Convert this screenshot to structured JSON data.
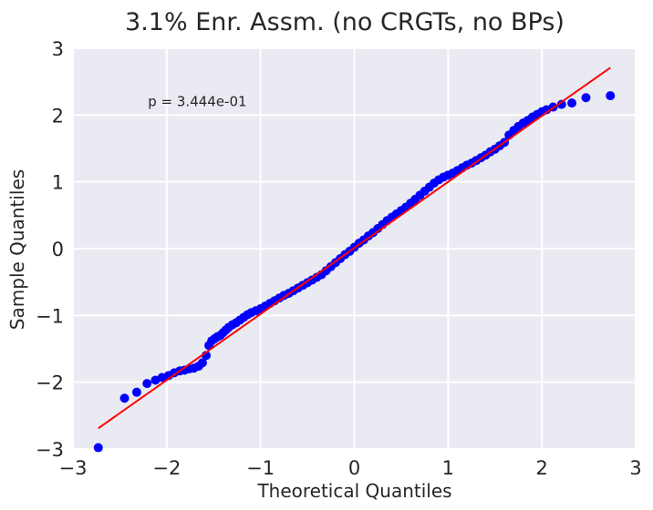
{
  "chart_data": {
    "type": "scatter",
    "title": "3.1% Enr. Assm. (no CRGTs, no BPs)",
    "xlabel": "Theoretical Quantiles",
    "ylabel": "Sample Quantiles",
    "xlim": [
      -3,
      3
    ],
    "ylim": [
      -3,
      3
    ],
    "xticks": [
      -3,
      -2,
      -1,
      0,
      1,
      2,
      3
    ],
    "yticks": [
      -3,
      -2,
      -1,
      0,
      1,
      2,
      3
    ],
    "xtick_labels": [
      "−3",
      "−2",
      "−1",
      "0",
      "1",
      "2",
      "3"
    ],
    "ytick_labels": [
      "−3",
      "−2",
      "−1",
      "0",
      "1",
      "2",
      "3"
    ],
    "grid": true,
    "annotation": {
      "text": "p = 3.444e-01",
      "x": -2.2,
      "y": 2.2
    },
    "series": [
      {
        "kind": "points",
        "color": "#0000ff",
        "x": [
          -2.73,
          -2.45,
          -2.32,
          -2.21,
          -2.12,
          -2.05,
          -1.98,
          -1.92,
          -1.86,
          -1.81,
          -1.76,
          -1.71,
          -1.66,
          -1.62,
          -1.58,
          -1.55,
          -1.52,
          -1.49,
          -1.46,
          -1.43,
          -1.4,
          -1.37,
          -1.34,
          -1.3,
          -1.26,
          -1.22,
          -1.18,
          -1.14,
          -1.1,
          -1.05,
          -1.0,
          -0.95,
          -0.9,
          -0.85,
          -0.8,
          -0.75,
          -0.7,
          -0.65,
          -0.6,
          -0.55,
          -0.5,
          -0.45,
          -0.4,
          -0.35,
          -0.3,
          -0.25,
          -0.2,
          -0.15,
          -0.1,
          -0.05,
          0.0,
          0.05,
          0.1,
          0.15,
          0.2,
          0.25,
          0.3,
          0.35,
          0.4,
          0.45,
          0.5,
          0.55,
          0.6,
          0.65,
          0.7,
          0.75,
          0.8,
          0.85,
          0.9,
          0.95,
          1.0,
          1.05,
          1.1,
          1.15,
          1.2,
          1.25,
          1.3,
          1.35,
          1.4,
          1.45,
          1.5,
          1.55,
          1.6,
          1.65,
          1.7,
          1.75,
          1.8,
          1.85,
          1.9,
          1.95,
          2.0,
          2.05,
          2.12,
          2.21,
          2.32,
          2.47,
          2.73
        ],
        "y": [
          -2.98,
          -2.24,
          -2.15,
          -2.02,
          -1.97,
          -1.93,
          -1.9,
          -1.86,
          -1.83,
          -1.82,
          -1.8,
          -1.79,
          -1.76,
          -1.71,
          -1.6,
          -1.45,
          -1.38,
          -1.35,
          -1.32,
          -1.3,
          -1.26,
          -1.22,
          -1.18,
          -1.14,
          -1.11,
          -1.07,
          -1.03,
          -0.99,
          -0.96,
          -0.93,
          -0.9,
          -0.86,
          -0.82,
          -0.78,
          -0.74,
          -0.7,
          -0.67,
          -0.63,
          -0.59,
          -0.55,
          -0.51,
          -0.47,
          -0.43,
          -0.39,
          -0.33,
          -0.27,
          -0.21,
          -0.15,
          -0.09,
          -0.04,
          0.02,
          0.08,
          0.13,
          0.19,
          0.24,
          0.3,
          0.36,
          0.42,
          0.47,
          0.52,
          0.57,
          0.62,
          0.68,
          0.74,
          0.8,
          0.86,
          0.92,
          0.98,
          1.03,
          1.07,
          1.1,
          1.13,
          1.17,
          1.21,
          1.25,
          1.28,
          1.32,
          1.36,
          1.4,
          1.45,
          1.49,
          1.54,
          1.59,
          1.7,
          1.77,
          1.83,
          1.88,
          1.92,
          1.97,
          2.01,
          2.05,
          2.08,
          2.12,
          2.16,
          2.18,
          2.26,
          2.29
        ]
      },
      {
        "kind": "line",
        "color": "#ff0000",
        "x": [
          -2.73,
          2.73
        ],
        "y": [
          -2.69,
          2.71
        ]
      }
    ]
  }
}
